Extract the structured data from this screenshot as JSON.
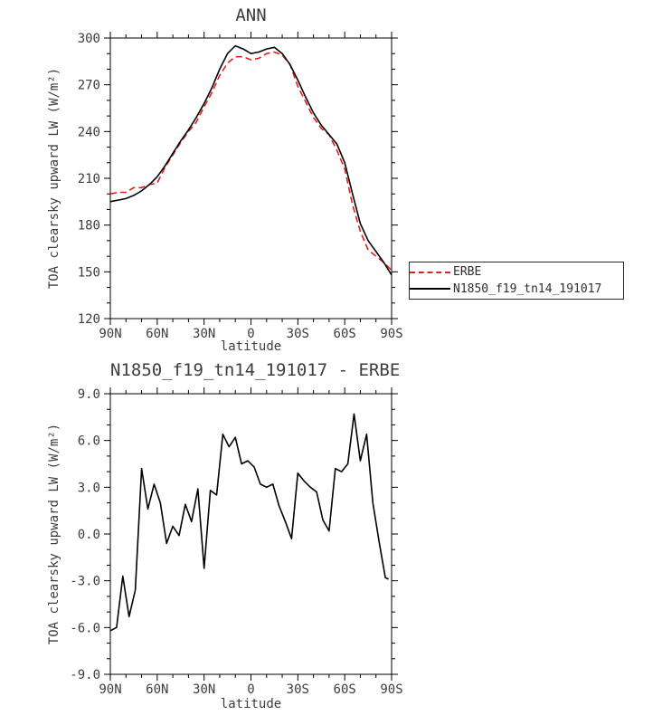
{
  "page": {
    "background": "#ffffff",
    "text_color": "#3d3d3d",
    "accent_red": "#e02020",
    "line_black": "#000000"
  },
  "chart_data": [
    {
      "type": "line",
      "title": "ANN",
      "xlabel": "latitude",
      "ylabel": "TOA clearsky upward LW (W/m²)",
      "xlim": [
        90,
        -90
      ],
      "ylim": [
        120,
        300
      ],
      "xticks": [
        90,
        60,
        30,
        0,
        -30,
        -60,
        -90
      ],
      "xtick_labels": [
        "90N",
        "60N",
        "30N",
        "0",
        "30S",
        "60S",
        "90S"
      ],
      "x_minor_step": 10,
      "yticks": [
        120,
        150,
        180,
        210,
        240,
        270,
        300
      ],
      "ytick_labels": [
        "120",
        "150",
        "180",
        "210",
        "240",
        "270",
        "300"
      ],
      "y_minor_step": 10,
      "grid": false,
      "legend_position": "outside-right",
      "series": [
        {
          "name": "ERBE",
          "color": "#e02020",
          "style": "dashed",
          "x": [
            90,
            85,
            80,
            75,
            70,
            65,
            60,
            55,
            50,
            45,
            40,
            35,
            30,
            25,
            20,
            15,
            10,
            5,
            0,
            -5,
            -10,
            -15,
            -20,
            -25,
            -30,
            -35,
            -40,
            -45,
            -50,
            -55,
            -60,
            -65,
            -70,
            -75,
            -80,
            -85,
            -90
          ],
          "y": [
            200,
            201,
            201,
            204,
            204,
            206,
            207,
            217,
            225,
            233,
            240,
            246,
            256,
            265,
            276,
            284,
            288,
            288,
            286,
            287,
            290,
            291,
            289,
            283,
            269,
            259,
            249,
            242,
            238,
            228,
            216,
            193,
            176,
            164,
            160,
            156,
            151
          ]
        },
        {
          "name": "N1850_f19_tn14_191017",
          "color": "#000000",
          "style": "solid",
          "x": [
            90,
            85,
            80,
            75,
            70,
            65,
            60,
            55,
            50,
            45,
            40,
            35,
            30,
            25,
            20,
            15,
            10,
            5,
            0,
            -5,
            -10,
            -15,
            -20,
            -25,
            -30,
            -35,
            -40,
            -45,
            -50,
            -55,
            -60,
            -65,
            -70,
            -75,
            -80,
            -85,
            -90
          ],
          "y": [
            195,
            196,
            197,
            199,
            202,
            206,
            211,
            218,
            226,
            234,
            241,
            249,
            258,
            268,
            280,
            290,
            295,
            293,
            290,
            291,
            293,
            294,
            290,
            283,
            273,
            262,
            252,
            244,
            238,
            232,
            220,
            200,
            181,
            170,
            163,
            156,
            148
          ]
        }
      ]
    },
    {
      "type": "line",
      "title": "N1850_f19_tn14_191017 - ERBE",
      "xlabel": "latitude",
      "ylabel": "TOA clearsky upward LW (W/m²)",
      "xlim": [
        90,
        -90
      ],
      "ylim": [
        -9,
        9
      ],
      "xticks": [
        90,
        60,
        30,
        0,
        -30,
        -60,
        -90
      ],
      "xtick_labels": [
        "90N",
        "60N",
        "30N",
        "0",
        "30S",
        "60S",
        "90S"
      ],
      "x_minor_step": 10,
      "yticks": [
        -9,
        -6,
        -3,
        0,
        3,
        6,
        9
      ],
      "ytick_labels": [
        "-9.0",
        "-6.0",
        "-3.0",
        "0.0",
        "3.0",
        "6.0",
        "9.0"
      ],
      "y_minor_step": 1,
      "grid": false,
      "legend_position": "none",
      "series": [
        {
          "name": "N1850_f19_tn14_191017 - ERBE",
          "color": "#000000",
          "style": "solid",
          "x": [
            90,
            86,
            82,
            78,
            74,
            70,
            66,
            62,
            58,
            54,
            50,
            46,
            42,
            38,
            34,
            30,
            26,
            22,
            18,
            14,
            10,
            6,
            2,
            -2,
            -6,
            -10,
            -14,
            -18,
            -22,
            -26,
            -30,
            -34,
            -38,
            -42,
            -46,
            -50,
            -54,
            -58,
            -62,
            -66,
            -70,
            -74,
            -78,
            -82,
            -86,
            -88
          ],
          "y": [
            -6.2,
            -6.0,
            -2.7,
            -5.3,
            -3.6,
            4.2,
            1.6,
            3.2,
            2.0,
            -0.6,
            0.5,
            -0.1,
            1.9,
            0.8,
            2.9,
            -2.2,
            2.8,
            2.5,
            6.4,
            5.6,
            6.2,
            4.5,
            4.7,
            4.3,
            3.2,
            3.0,
            3.2,
            1.8,
            0.8,
            -0.3,
            3.9,
            3.4,
            3.0,
            2.7,
            0.9,
            0.2,
            4.2,
            4.0,
            4.5,
            7.7,
            4.7,
            6.4,
            2.0,
            -0.5,
            -2.8,
            -2.9
          ]
        }
      ]
    }
  ]
}
